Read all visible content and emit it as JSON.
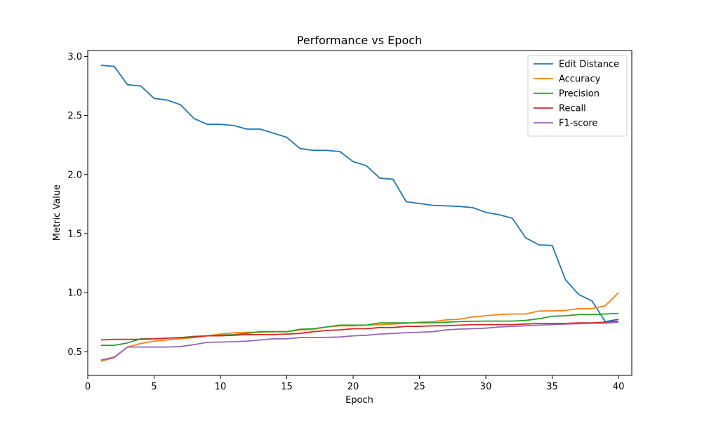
{
  "chart_data": {
    "type": "line",
    "title": "Performance vs Epoch",
    "xlabel": "Epoch",
    "ylabel": "Metric Value",
    "xlim": [
      0,
      41
    ],
    "ylim": [
      0.3,
      3.05
    ],
    "xticks": [
      0,
      5,
      10,
      15,
      20,
      25,
      30,
      35,
      40
    ],
    "yticks": [
      0.5,
      1.0,
      1.5,
      2.0,
      2.5,
      3.0
    ],
    "ytick_labels": [
      "0.5",
      "1.0",
      "1.5",
      "2.0",
      "2.5",
      "3.0"
    ],
    "grid": false,
    "legend_position": "top-right",
    "x": [
      1,
      2,
      3,
      4,
      5,
      6,
      7,
      8,
      9,
      10,
      11,
      12,
      13,
      14,
      15,
      16,
      17,
      18,
      19,
      20,
      21,
      22,
      23,
      24,
      25,
      26,
      27,
      28,
      29,
      30,
      31,
      32,
      33,
      34,
      35,
      36,
      37,
      38,
      39,
      40
    ],
    "series": [
      {
        "name": "Edit Distance",
        "color": "#1f77b4",
        "values": [
          2.925,
          2.915,
          2.76,
          2.75,
          2.645,
          2.63,
          2.59,
          2.475,
          2.425,
          2.425,
          2.415,
          2.385,
          2.385,
          2.35,
          2.315,
          2.22,
          2.205,
          2.205,
          2.195,
          2.11,
          2.075,
          1.97,
          1.96,
          1.77,
          1.755,
          1.74,
          1.735,
          1.73,
          1.72,
          1.68,
          1.66,
          1.63,
          1.465,
          1.405,
          1.4,
          1.11,
          0.985,
          0.93,
          0.755,
          0.775
        ]
      },
      {
        "name": "Accuracy",
        "color": "#ff7f0e",
        "values": [
          0.42,
          0.45,
          0.54,
          0.57,
          0.59,
          0.6,
          0.61,
          0.62,
          0.635,
          0.65,
          0.66,
          0.665,
          0.665,
          0.67,
          0.67,
          0.685,
          0.69,
          0.71,
          0.72,
          0.72,
          0.725,
          0.73,
          0.735,
          0.74,
          0.75,
          0.755,
          0.77,
          0.775,
          0.795,
          0.805,
          0.815,
          0.82,
          0.82,
          0.845,
          0.845,
          0.85,
          0.865,
          0.865,
          0.89,
          1.0
        ]
      },
      {
        "name": "Precision",
        "color": "#2ca02c",
        "values": [
          0.555,
          0.555,
          0.575,
          0.61,
          0.61,
          0.615,
          0.62,
          0.63,
          0.635,
          0.64,
          0.645,
          0.655,
          0.67,
          0.67,
          0.67,
          0.69,
          0.695,
          0.71,
          0.725,
          0.725,
          0.725,
          0.745,
          0.745,
          0.745,
          0.745,
          0.745,
          0.75,
          0.755,
          0.758,
          0.76,
          0.76,
          0.76,
          0.765,
          0.78,
          0.8,
          0.805,
          0.815,
          0.815,
          0.82,
          0.825
        ]
      },
      {
        "name": "Recall",
        "color": "#d62728",
        "values": [
          0.6,
          0.605,
          0.605,
          0.605,
          0.61,
          0.615,
          0.62,
          0.625,
          0.635,
          0.635,
          0.64,
          0.645,
          0.645,
          0.645,
          0.65,
          0.655,
          0.67,
          0.68,
          0.685,
          0.695,
          0.695,
          0.705,
          0.705,
          0.715,
          0.715,
          0.72,
          0.72,
          0.725,
          0.73,
          0.73,
          0.73,
          0.73,
          0.735,
          0.74,
          0.74,
          0.74,
          0.745,
          0.745,
          0.75,
          0.76
        ]
      },
      {
        "name": "F1-score",
        "color": "#9467bd",
        "values": [
          0.43,
          0.455,
          0.54,
          0.54,
          0.54,
          0.54,
          0.545,
          0.56,
          0.58,
          0.582,
          0.585,
          0.59,
          0.6,
          0.61,
          0.61,
          0.62,
          0.62,
          0.622,
          0.625,
          0.635,
          0.64,
          0.65,
          0.655,
          0.662,
          0.665,
          0.67,
          0.685,
          0.692,
          0.695,
          0.7,
          0.71,
          0.715,
          0.72,
          0.725,
          0.73,
          0.735,
          0.738,
          0.74,
          0.742,
          0.75
        ]
      }
    ]
  }
}
